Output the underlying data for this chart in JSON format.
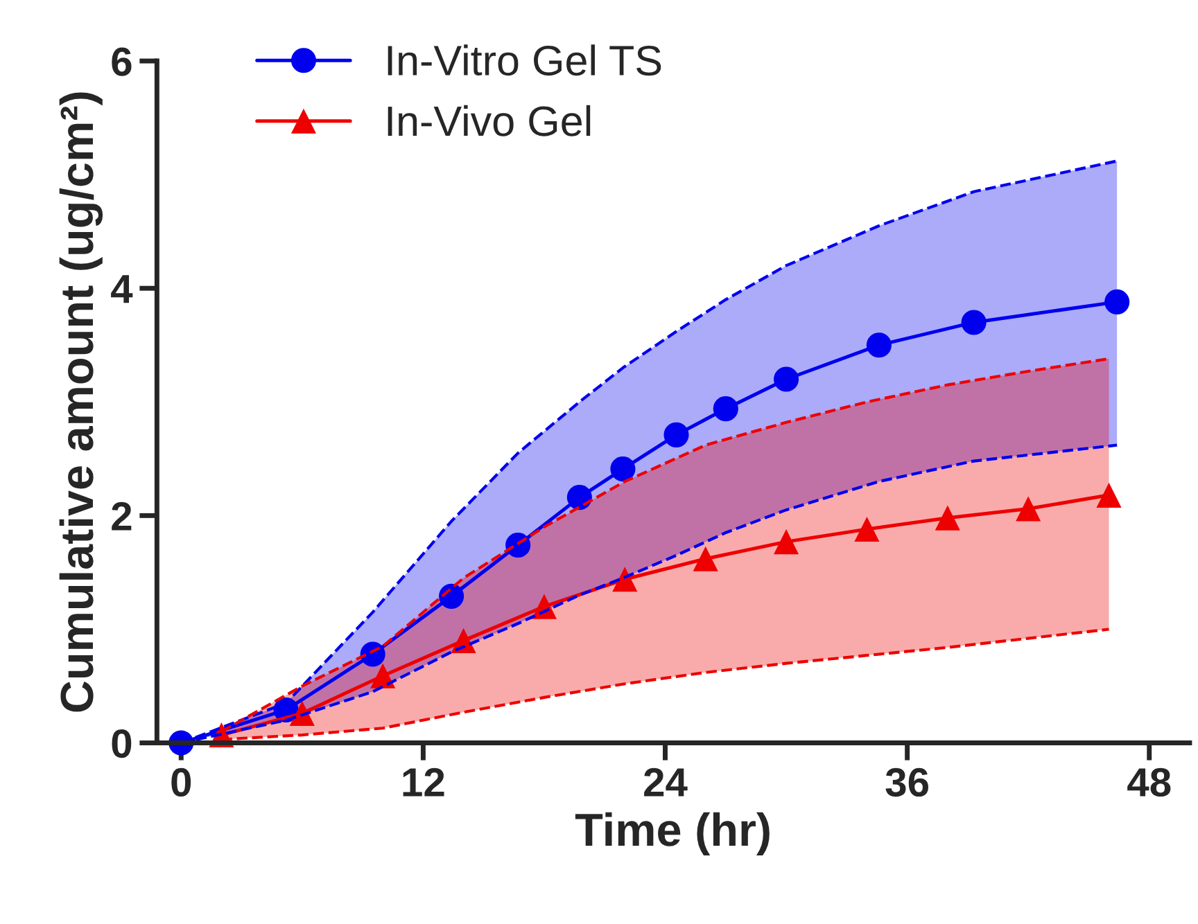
{
  "chart_data": {
    "type": "line",
    "xlabel": "Time (hr)",
    "ylabel": "Cumulative amount (ug/cm²)",
    "xlim": [
      -1.2,
      50
    ],
    "xticks": [
      0,
      12,
      24,
      36,
      48
    ],
    "ylim": [
      0,
      6
    ],
    "yticks": [
      0,
      2,
      4,
      6
    ],
    "grid": false,
    "legend": "top left",
    "line_style": "solid",
    "series": [
      {
        "name": "In-Vitro Gel TS",
        "color": "#0000ee",
        "marker": "circle",
        "x": [
          0,
          5.2,
          9.5,
          13.4,
          16.7,
          19.75,
          21.9,
          24.55,
          27,
          30,
          34.6,
          39.3,
          46.4
        ],
        "values": [
          0,
          0.29,
          0.78,
          1.29,
          1.74,
          2.16,
          2.41,
          2.71,
          2.94,
          3.2,
          3.5,
          3.7,
          3.88
        ],
        "lower": [
          0,
          0.2,
          0.45,
          0.8,
          1.05,
          1.3,
          1.45,
          1.65,
          1.85,
          2.05,
          2.3,
          2.48,
          2.62
        ],
        "upper": [
          0,
          0.35,
          1.15,
          1.95,
          2.55,
          3.0,
          3.3,
          3.62,
          3.9,
          4.2,
          4.55,
          4.85,
          5.12
        ]
      },
      {
        "name": "In-Vivo Gel",
        "color": "#ee0000",
        "marker": "triangle",
        "x": [
          2,
          6,
          10,
          14,
          18,
          22,
          26,
          30,
          34,
          38,
          42,
          46
        ],
        "values": [
          0.07,
          0.26,
          0.59,
          0.9,
          1.2,
          1.44,
          1.62,
          1.77,
          1.88,
          1.98,
          2.06,
          2.18
        ],
        "lower": [
          0.03,
          0.07,
          0.13,
          0.27,
          0.4,
          0.52,
          0.62,
          0.7,
          0.77,
          0.84,
          0.92,
          1.0
        ],
        "upper": [
          0.1,
          0.5,
          0.85,
          1.45,
          1.9,
          2.3,
          2.62,
          2.82,
          3.0,
          3.15,
          3.27,
          3.38
        ]
      },
      {
        "type": "line",
        "color": "#0000ee",
        "marker": "none",
        "line_style": "dashed",
        "x": [
          0,
          5.2,
          9.5,
          13.4,
          16.7,
          19.75,
          21.9,
          24.55,
          27,
          30,
          34.6,
          39.3,
          46.4
        ],
        "values": [
          0,
          0.2,
          0.45,
          0.8,
          1.05,
          1.3,
          1.45,
          1.65,
          1.85,
          2.05,
          2.3,
          2.48,
          2.62
        ]
      },
      {
        "type": "line",
        "color": "#0000ee",
        "marker": "none",
        "line_style": "dashed",
        "x": [
          0,
          5.2,
          9.5,
          13.4,
          16.7,
          19.75,
          21.9,
          24.55,
          27,
          30,
          34.6,
          39.3,
          46.4
        ],
        "values": [
          0,
          0.35,
          1.15,
          1.95,
          2.55,
          3.0,
          3.3,
          3.62,
          3.9,
          4.2,
          4.55,
          4.85,
          5.12
        ]
      },
      {
        "type": "line",
        "color": "#ee0000",
        "marker": "none",
        "line_style": "dashed",
        "x": [
          2,
          6,
          10,
          14,
          18,
          22,
          26,
          30,
          34,
          38,
          42,
          46
        ],
        "values": [
          0.03,
          0.07,
          0.13,
          0.27,
          0.4,
          0.52,
          0.62,
          0.7,
          0.77,
          0.84,
          0.92,
          1.0
        ]
      },
      {
        "type": "line",
        "color": "#ee0000",
        "marker": "none",
        "line_style": "dashed",
        "x": [
          2,
          6,
          10,
          14,
          18,
          22,
          26,
          30,
          34,
          38,
          42,
          46
        ],
        "values": [
          0.1,
          0.5,
          0.85,
          1.45,
          1.9,
          2.3,
          2.62,
          2.82,
          3.0,
          3.15,
          3.27,
          3.38
        ]
      }
    ]
  }
}
